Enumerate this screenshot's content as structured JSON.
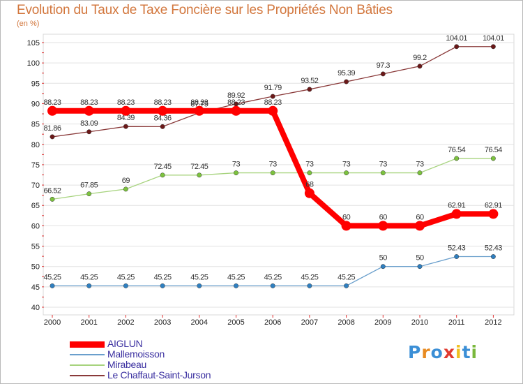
{
  "title": "Evolution du Taux de Taxe Foncière sur les Propriétés Non Bâties",
  "subtitle": "(en %)",
  "logo": {
    "letters": [
      "P",
      "r",
      "o",
      "x",
      "i",
      "t",
      "i"
    ],
    "colors": [
      "#3b8fd6",
      "#e88b22",
      "#3b8fd6",
      "#e03a2f",
      "#f0c020",
      "#3b8fd6",
      "#7ab83c"
    ]
  },
  "chart_data": {
    "type": "line",
    "title": "Evolution du Taux de Taxe Foncière sur les Propriétés Non Bâties",
    "ylabel": "(en %)",
    "xlabel": "",
    "x": [
      "2000",
      "2001",
      "2002",
      "2003",
      "2004",
      "2005",
      "2006",
      "2007",
      "2008",
      "2009",
      "2010",
      "2011",
      "2012"
    ],
    "ylim": [
      40,
      105
    ],
    "yticks": [
      40,
      45,
      50,
      55,
      60,
      65,
      70,
      75,
      80,
      85,
      90,
      95,
      100,
      105
    ],
    "grid": "horizontal",
    "legend_position": "bottom-left",
    "series": [
      {
        "name": "AIGLUN",
        "color": "#ff0000",
        "emphasis": true,
        "values": [
          88.23,
          88.23,
          88.23,
          88.23,
          88.23,
          88.23,
          88.23,
          68,
          60,
          60,
          60,
          62.91,
          62.91
        ],
        "labels": [
          "88.23",
          "88.23",
          "88.23",
          "88.23",
          "88.23",
          "88.23",
          "88.23",
          "68",
          "60",
          "60",
          "60",
          "62.91",
          "62.91"
        ]
      },
      {
        "name": "Mallemoisson",
        "color": "#6a9fcc",
        "marker": "#2f7fc0",
        "values": [
          45.25,
          45.25,
          45.25,
          45.25,
          45.25,
          45.25,
          45.25,
          45.25,
          45.25,
          50,
          50,
          52.43,
          52.43
        ],
        "labels": [
          "45.25",
          "45.25",
          "45.25",
          "45.25",
          "45.25",
          "45.25",
          "45.25",
          "45.25",
          "45.25",
          "50",
          "50",
          "52.43",
          "52.43"
        ]
      },
      {
        "name": "Mirabeau",
        "color": "#a7d37e",
        "marker": "#7cc23e",
        "values": [
          66.52,
          67.85,
          69,
          72.45,
          72.45,
          73,
          73,
          73,
          73,
          73,
          73,
          76.54,
          76.54
        ],
        "labels": [
          "66.52",
          "67.85",
          "69",
          "72.45",
          "72.45",
          "73",
          "73",
          "73",
          "73",
          "73",
          "73",
          "76.54",
          "76.54"
        ]
      },
      {
        "name": "Le Chaffaut-Saint-Jurson",
        "color": "#8a3a3a",
        "marker": "#6b1818",
        "values": [
          81.86,
          83.09,
          84.39,
          84.36,
          87.75,
          89.92,
          91.79,
          93.52,
          95.39,
          97.3,
          99.2,
          104.01,
          104.01
        ],
        "labels": [
          "81.86",
          "83.09",
          "84.39",
          "84.36",
          "87.75",
          "89.92",
          "91.79",
          "93.52",
          "95.39",
          "97.3",
          "99.2",
          "104.01",
          "104.01"
        ]
      }
    ]
  }
}
